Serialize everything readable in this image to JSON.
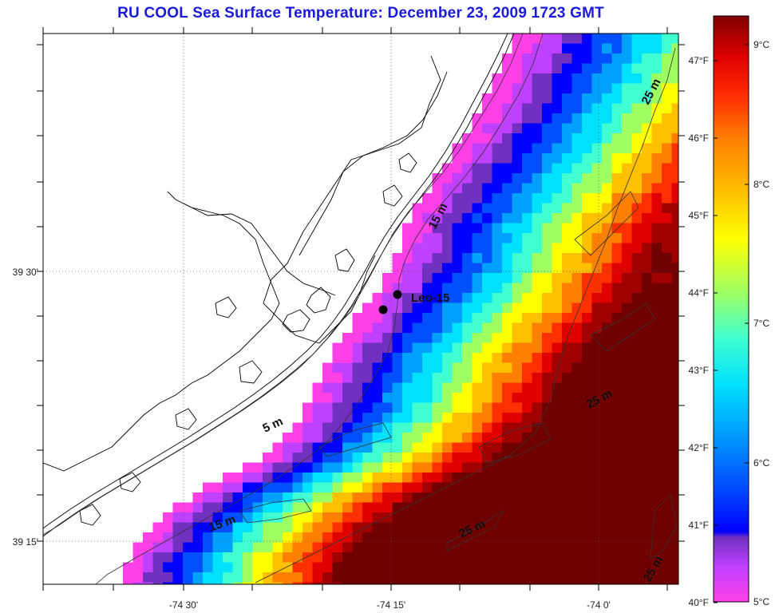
{
  "title": "RU COOL  Sea Surface Temperature:  December 23, 2009 1723 GMT",
  "axes": {
    "lat_ticks": [
      {
        "id": "lat-3930",
        "label": "39 30'",
        "lat": 39.5
      },
      {
        "id": "lat-3915",
        "label": "39 15'",
        "lat": 39.25
      }
    ],
    "lon_ticks": [
      {
        "id": "lon-7430",
        "label": "-74 30'",
        "lon": -74.5
      },
      {
        "id": "lon-7415",
        "label": "-74 15'",
        "lon": -74.25
      },
      {
        "id": "lon-7400",
        "label": "-74 0'",
        "lon": -74.0
      }
    ]
  },
  "station": {
    "name": "Leo-15"
  },
  "isobath_labels": [
    "25 m",
    "15 m",
    "5 m",
    "25 m",
    "15 m",
    "25 m",
    "25 m"
  ],
  "colorbar": {
    "fahrenheit": [
      "47°F",
      "46°F",
      "45°F",
      "44°F",
      "43°F",
      "42°F",
      "41°F",
      "40°F"
    ],
    "celsius": [
      "9°C",
      "8°C",
      "7°C",
      "6°C",
      "5°C"
    ],
    "colors": [
      "#ff40e6",
      "#c040ff",
      "#7030c0",
      "#0000ff",
      "#0050ff",
      "#00a0ff",
      "#00e0ff",
      "#40ffd0",
      "#a0ff60",
      "#ffff00",
      "#ffc000",
      "#ff8000",
      "#ff3000",
      "#e00000",
      "#a00000",
      "#700000"
    ]
  },
  "grid": {
    "visible": true
  }
}
